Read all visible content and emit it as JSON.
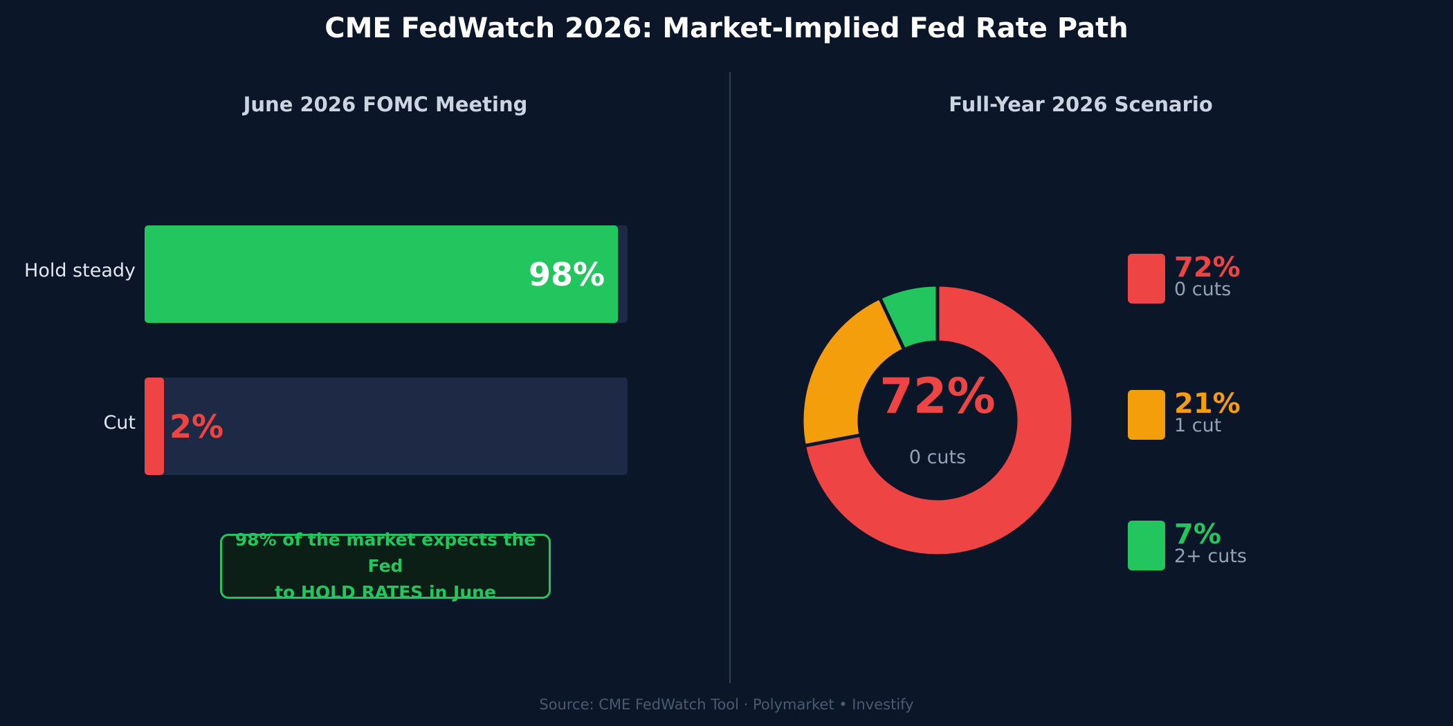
{
  "title": "CME FedWatch 2026: Market-Implied Fed Rate Path",
  "source": "Source: CME FedWatch Tool · Polymarket  •  Investify",
  "chart_data": [
    {
      "type": "bar",
      "orientation": "horizontal",
      "title": "June 2026 FOMC Meeting",
      "categories": [
        "Hold steady",
        "Cut"
      ],
      "values": [
        98,
        2
      ],
      "value_labels": [
        "98%",
        "2%"
      ],
      "colors": [
        "#22c55e",
        "#ef4444"
      ],
      "xlim": [
        0,
        100
      ],
      "grid": false,
      "annotation": {
        "line1": "98% of the market expects the Fed",
        "line2": "to HOLD RATES in June"
      }
    },
    {
      "type": "pie",
      "style": "donut",
      "title": "Full-Year 2026 Scenario",
      "categories": [
        "0 cuts",
        "1 cut",
        "2+ cuts"
      ],
      "values": [
        72,
        21,
        7
      ],
      "value_labels": [
        "72%",
        "21%",
        "7%"
      ],
      "colors": [
        "#ef4444",
        "#f59e0b",
        "#22c55e"
      ],
      "center_value": "72%",
      "center_label": "0 cuts",
      "legend": "right"
    }
  ]
}
